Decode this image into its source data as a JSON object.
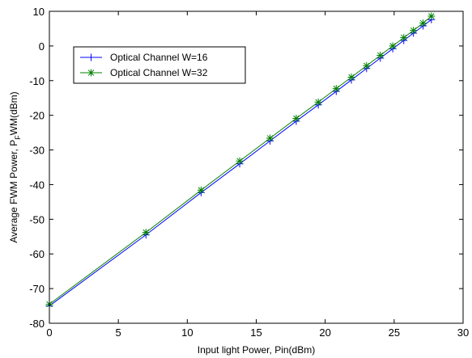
{
  "chart_data": {
    "type": "line",
    "title": "",
    "xlabel": "Input light Power, Pin(dBm)",
    "ylabel": "Average FWM Power, P",
    "ylabel_sub": "F",
    "ylabel_tail": "WM(dBm)",
    "xlim": [
      0,
      30
    ],
    "ylim": [
      -80,
      10
    ],
    "xticks": [
      0,
      5,
      10,
      15,
      20,
      25,
      30
    ],
    "yticks": [
      -80,
      -70,
      -60,
      -50,
      -40,
      -30,
      -20,
      -10,
      0,
      10
    ],
    "grid": false,
    "legend_position": "upper-left",
    "series": [
      {
        "name": "Optical Channel W=16",
        "color": "#0000ff",
        "marker": "plus",
        "x": [
          0,
          7,
          11,
          13.8,
          16,
          17.9,
          19.5,
          20.8,
          21.9,
          23,
          24,
          24.9,
          25.7,
          26.4,
          27.1,
          27.7
        ],
        "y": [
          -75,
          -54.5,
          -42.3,
          -34,
          -27.4,
          -21.7,
          -17,
          -13.1,
          -9.8,
          -6.5,
          -3.5,
          -0.8,
          1.6,
          3.7,
          5.8,
          7.6
        ]
      },
      {
        "name": "Optical Channel W=32",
        "color": "#008000",
        "marker": "star",
        "x": [
          0,
          7,
          11,
          13.8,
          16,
          17.9,
          19.5,
          20.8,
          21.9,
          23,
          24,
          24.9,
          25.7,
          26.4,
          27.1,
          27.7
        ],
        "y": [
          -74.5,
          -53.8,
          -41.6,
          -33.2,
          -26.6,
          -20.9,
          -16.2,
          -12.3,
          -9,
          -5.7,
          -2.7,
          0,
          2.4,
          4.5,
          6.6,
          8.6
        ]
      }
    ]
  }
}
